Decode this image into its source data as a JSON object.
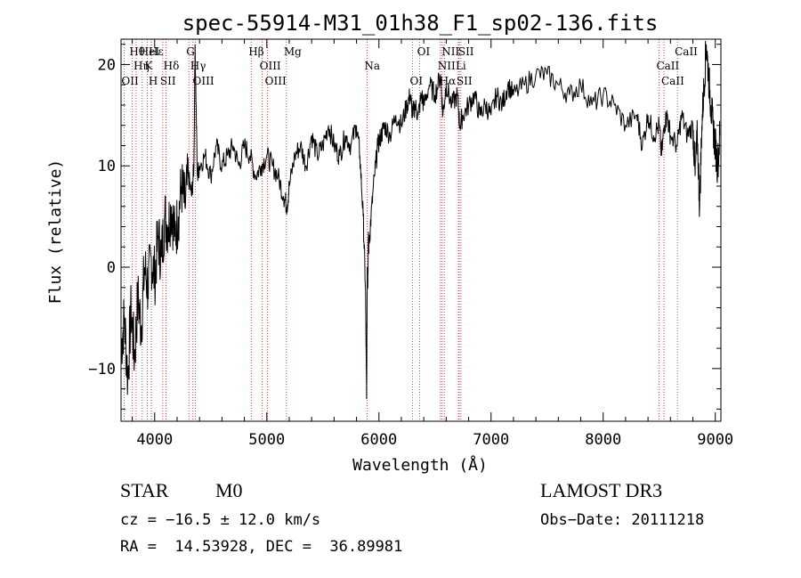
{
  "chart_data": {
    "type": "line",
    "title": "spec-55914-M31_01h38_F1_sp02-136.fits",
    "xlabel": "Wavelength (Å)",
    "ylabel": "Flux (relative)",
    "xlim": [
      3700,
      9050
    ],
    "ylim": [
      -15.2,
      22.5
    ],
    "xticks": [
      4000,
      5000,
      6000,
      7000,
      8000,
      9000
    ],
    "yticks": [
      -10,
      0,
      10,
      20
    ],
    "series": [
      {
        "name": "flux",
        "x": [
          3700,
          3730,
          3760,
          3790,
          3820,
          3850,
          3880,
          3910,
          3940,
          3970,
          4000,
          4030,
          4060,
          4090,
          4120,
          4150,
          4180,
          4210,
          4240,
          4270,
          4300,
          4330,
          4350,
          4360,
          4380,
          4400,
          4450,
          4500,
          4550,
          4600,
          4650,
          4700,
          4750,
          4800,
          4850,
          4900,
          4950,
          5000,
          5050,
          5100,
          5150,
          5180,
          5200,
          5250,
          5300,
          5350,
          5400,
          5450,
          5500,
          5550,
          5600,
          5650,
          5700,
          5750,
          5800,
          5830,
          5860,
          5880,
          5890,
          5896,
          5900,
          5905,
          5910,
          5930,
          5960,
          5990,
          6020,
          6050,
          6100,
          6150,
          6200,
          6250,
          6280,
          6300,
          6320,
          6350,
          6380,
          6400,
          6450,
          6500,
          6550,
          6570,
          6600,
          6650,
          6700,
          6720,
          6750,
          6800,
          6850,
          6900,
          6950,
          7000,
          7050,
          7100,
          7150,
          7200,
          7300,
          7400,
          7500,
          7600,
          7700,
          7800,
          7900,
          8000,
          8100,
          8200,
          8300,
          8350,
          8400,
          8450,
          8500,
          8520,
          8545,
          8570,
          8600,
          8660,
          8700,
          8750,
          8800,
          8820,
          8840,
          8860,
          8880,
          8900,
          8920,
          8940,
          8960,
          8980,
          9000,
          9020,
          9040
        ],
        "y": [
          -8,
          -5,
          -11,
          -4,
          -9,
          -3,
          -6,
          0,
          -2,
          1,
          -1,
          3,
          1,
          5,
          4,
          6,
          3,
          5,
          8,
          6,
          9,
          7,
          10,
          22,
          9,
          10,
          11,
          9,
          12,
          10,
          11,
          12,
          10,
          12,
          11,
          9,
          10,
          11,
          10,
          9,
          7,
          6,
          8,
          11,
          12,
          10,
          13,
          11,
          12,
          14,
          12,
          11,
          13,
          12,
          14,
          11,
          5,
          -2,
          -13,
          0,
          -2,
          3,
          2,
          5,
          9,
          12,
          13,
          14,
          13,
          15,
          14,
          16,
          17,
          15,
          16,
          15,
          17,
          16,
          18,
          17,
          19,
          15,
          18,
          16,
          17,
          14,
          15,
          16,
          17,
          15,
          16,
          15,
          17,
          16,
          18,
          17,
          18,
          19,
          19,
          18,
          17,
          18,
          16,
          17,
          16,
          14,
          15,
          12,
          15,
          13,
          14,
          11,
          14,
          15,
          13,
          12,
          15,
          13,
          14,
          9,
          13,
          6,
          14,
          18,
          22,
          19,
          16,
          14,
          12,
          10,
          13
        ]
      }
    ],
    "line_markers": [
      {
        "label": "Hθ",
        "x": 3798
      },
      {
        "label": "Hη",
        "x": 3835
      },
      {
        "label": "OII",
        "x": 3727
      },
      {
        "label": "HeI",
        "x": 3889
      },
      {
        "label": "K",
        "x": 3934
      },
      {
        "label": "H",
        "x": 3969
      },
      {
        "label": "Hε",
        "x": 3970
      },
      {
        "label": "Hδ",
        "x": 4102
      },
      {
        "label": "SII",
        "x": 4072
      },
      {
        "label": "G",
        "x": 4305
      },
      {
        "label": "Hγ",
        "x": 4341
      },
      {
        "label": "OIII",
        "x": 4363
      },
      {
        "label": "Hβ",
        "x": 4861
      },
      {
        "label": "OIII",
        "x": 4959
      },
      {
        "label": "OIII",
        "x": 5007
      },
      {
        "label": "Mg",
        "x": 5175
      },
      {
        "label": "Na",
        "x": 5894
      },
      {
        "label": "OI",
        "x": 6300
      },
      {
        "label": "OI",
        "x": 6364
      },
      {
        "label": "NII",
        "x": 6548
      },
      {
        "label": "Hα",
        "x": 6563
      },
      {
        "label": "NII",
        "x": 6583
      },
      {
        "label": "Li",
        "x": 6708
      },
      {
        "label": "SII",
        "x": 6716
      },
      {
        "label": "SII",
        "x": 6731
      },
      {
        "label": "CaII",
        "x": 8498
      },
      {
        "label": "CaII",
        "x": 8542
      },
      {
        "label": "CaII",
        "x": 8662
      }
    ]
  },
  "info": {
    "class_label": "STAR",
    "subclass": "M0",
    "redshift_line": "cz = −16.5 ± 12.0 km/s",
    "coords_line": "RA =  14.53928, DEC =  36.89981",
    "survey": "LAMOST DR3",
    "obs_date_line": "Obs−Date: 20111218"
  },
  "colors": {
    "line_marker": "#cc2222",
    "spectrum": "#000000",
    "axes": "#000000"
  }
}
